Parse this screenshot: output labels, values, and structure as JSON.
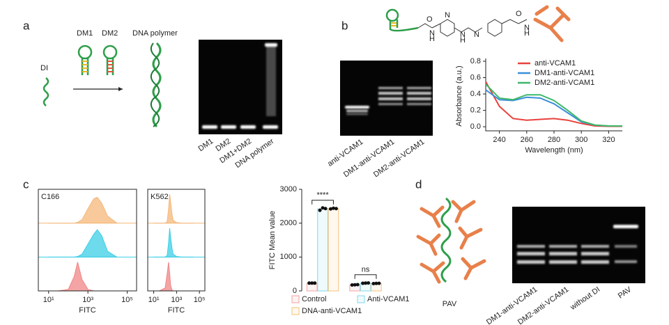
{
  "panel_labels": [
    "a",
    "b",
    "c",
    "d"
  ],
  "panel_a": {
    "di": "DI",
    "dm1": "DM1",
    "dm2": "DM2",
    "polymer": "DNA polymer",
    "lanes": [
      "DM1",
      "DM2",
      "DM1+DM2",
      "DNA polymer"
    ]
  },
  "panel_b": {
    "atoms": [
      "O",
      "N",
      "H",
      "N",
      "N",
      "H",
      "N",
      "O",
      "N",
      "H"
    ],
    "lanes": [
      "anti-VCAM1",
      "DM1-anti-VCAM1",
      "DM2-anti-VCAM1"
    ]
  },
  "panel_d": {
    "caption": "PAV",
    "lanes": [
      "DM1-anti-VCAM1",
      "DM2-anti-VCAM1",
      "without DI",
      "PAV"
    ]
  },
  "chart_data": [
    {
      "type": "line",
      "xlabel": "Wavelength (nm)",
      "ylabel": "Absorbance (a.u.)",
      "x": [
        230,
        240,
        250,
        260,
        270,
        280,
        290,
        300,
        310,
        320,
        330
      ],
      "xlim": [
        230,
        330
      ],
      "xticks": [
        240,
        260,
        280,
        300,
        320
      ],
      "ylim": [
        -0.05,
        0.8
      ],
      "yticks": [
        {
          "value": 0,
          "label": "0.0"
        },
        0.2,
        0.4,
        0.6,
        0.8
      ],
      "legend": "top-right",
      "series": [
        {
          "name": "anti-VCAM1",
          "color": "#e8413c",
          "values": [
            0.55,
            0.25,
            0.1,
            0.08,
            0.09,
            0.1,
            0.08,
            0.04,
            0.01,
            0.005,
            0.005
          ]
        },
        {
          "name": "DM1-anti-VCAM1",
          "color": "#3a8fd9",
          "values": [
            0.45,
            0.33,
            0.32,
            0.36,
            0.35,
            0.28,
            0.17,
            0.06,
            0.02,
            0.01,
            0.01
          ]
        },
        {
          "name": "DM2-anti-VCAM1",
          "color": "#3cb868",
          "values": [
            0.52,
            0.35,
            0.33,
            0.39,
            0.39,
            0.32,
            0.2,
            0.07,
            0.02,
            0.01,
            0.01
          ]
        }
      ]
    },
    {
      "type": "histogram",
      "title": "C166",
      "xlabel": "FITC",
      "log_x": true,
      "x": [
        10,
        30,
        100,
        200,
        300,
        500,
        1000,
        2000,
        3000,
        5000,
        10000,
        30000
      ],
      "xlim": [
        3,
        300000
      ],
      "xticks": [
        {
          "value": 10,
          "label": "10¹"
        },
        {
          "value": 1000,
          "label": "10³"
        },
        {
          "value": 100000,
          "label": "10⁵"
        }
      ],
      "series": [
        {
          "color": "#f08585",
          "values": [
            0,
            0,
            0.05,
            0.5,
            1,
            0.4,
            0.05,
            0,
            0,
            0,
            0,
            0
          ]
        },
        {
          "color": "#3ccfe6",
          "values": [
            0,
            0,
            0,
            0,
            0.02,
            0.1,
            0.45,
            0.8,
            0.95,
            0.75,
            0.2,
            0
          ]
        },
        {
          "color": "#f5b77a",
          "values": [
            0,
            0,
            0,
            0,
            0.03,
            0.12,
            0.5,
            0.85,
            0.9,
            0.7,
            0.25,
            0
          ]
        }
      ]
    },
    {
      "type": "histogram",
      "title": "K562",
      "xlabel": "FITC",
      "log_x": true,
      "x": [
        10,
        30,
        100,
        150,
        200,
        250,
        300,
        400,
        500,
        1000,
        3000,
        30000
      ],
      "xlim": [
        3,
        300000
      ],
      "xticks": [
        {
          "value": 10,
          "label": "10¹"
        },
        {
          "value": 1000,
          "label": "10³"
        },
        {
          "value": 100000,
          "label": "10⁵"
        }
      ],
      "series": [
        {
          "color": "#f08585",
          "values": [
            0,
            0,
            0.1,
            0.6,
            1,
            0.6,
            0.2,
            0.03,
            0,
            0,
            0,
            0
          ]
        },
        {
          "color": "#3ccfe6",
          "values": [
            0,
            0,
            0,
            0.05,
            0.5,
            1,
            0.7,
            0.3,
            0.1,
            0.02,
            0,
            0
          ]
        },
        {
          "color": "#f5b77a",
          "values": [
            0,
            0,
            0,
            0.05,
            0.5,
            1,
            0.75,
            0.3,
            0.1,
            0.02,
            0,
            0
          ]
        }
      ]
    },
    {
      "type": "bar",
      "ylabel": "FITC Mean value",
      "categories": [
        null,
        null
      ],
      "ylim": [
        0,
        3000
      ],
      "yticks": [
        0,
        1000,
        2000,
        3000
      ],
      "annotations": [
        "****",
        "ns"
      ],
      "series": [
        {
          "name": "Control",
          "color": "#f4a0a0",
          "values": [
            230,
            180
          ],
          "points": [
            [
              230,
              230,
              230
            ],
            [
              175,
              180,
              185
            ]
          ]
        },
        {
          "name": "Anti-VCAM1",
          "color": "#7fd8ec",
          "values": [
            2420,
            230
          ],
          "points": [
            [
              2380,
              2450,
              2430
            ],
            [
              225,
              230,
              235
            ]
          ]
        },
        {
          "name": "DNA-anti-VCAM1",
          "color": "#f5c27a",
          "values": [
            2430,
            220
          ],
          "points": [
            [
              2420,
              2440,
              2430
            ],
            [
              215,
              222,
              223
            ]
          ]
        }
      ]
    }
  ]
}
